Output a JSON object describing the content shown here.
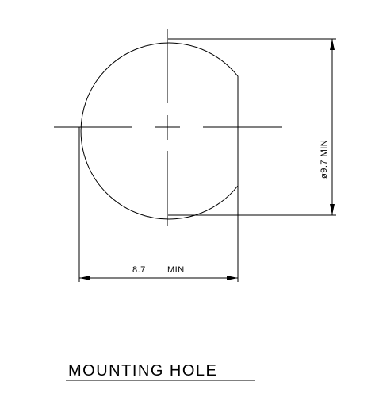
{
  "drawing": {
    "title": "MOUNTING HOLE",
    "dimensions": {
      "width_value": "8.7",
      "width_suffix": "MIN",
      "diameter_label": "ø9.7  MIN"
    },
    "colors": {
      "line": "#000000",
      "background": "#ffffff"
    }
  }
}
